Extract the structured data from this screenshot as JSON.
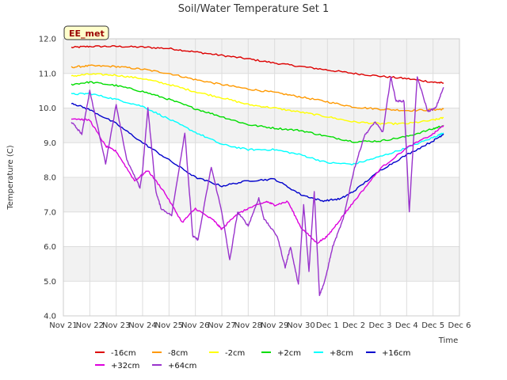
{
  "chart_data": {
    "type": "line",
    "title": "Soil/Water Temperature Set 1",
    "xlabel": "Time",
    "ylabel": "Temperature (C)",
    "station_badge": "EE_met",
    "ylim": [
      4.0,
      12.0
    ],
    "yticks": [
      "4.0",
      "5.0",
      "6.0",
      "7.0",
      "8.0",
      "9.0",
      "10.0",
      "11.0",
      "12.0"
    ],
    "xlim": [
      0,
      15
    ],
    "xticks": [
      "Nov 21",
      "Nov 22",
      "Nov 23",
      "Nov 24",
      "Nov 25",
      "Nov 26",
      "Nov 27",
      "Nov 28",
      "Nov 29",
      "Nov 30",
      "Dec 1",
      "Dec 2",
      "Dec 3",
      "Dec 4",
      "Dec 5",
      "Dec 6"
    ],
    "grid": true,
    "legend_position": "bottom",
    "series": [
      {
        "name": "-16cm",
        "color": "#dd0000",
        "x": [
          0.3,
          1,
          2,
          3,
          4,
          5,
          6,
          7,
          8,
          9,
          10,
          11,
          12,
          13,
          14,
          14.4
        ],
        "y": [
          11.75,
          11.78,
          11.78,
          11.76,
          11.72,
          11.62,
          11.52,
          11.42,
          11.3,
          11.2,
          11.1,
          11.0,
          10.92,
          10.85,
          10.75,
          10.72
        ]
      },
      {
        "name": "-8cm",
        "color": "#ff9900",
        "x": [
          0.3,
          1,
          2,
          3,
          4,
          5,
          6,
          7,
          8,
          9,
          10,
          11,
          12,
          13,
          14,
          14.4
        ],
        "y": [
          11.18,
          11.22,
          11.2,
          11.12,
          11.0,
          10.82,
          10.68,
          10.55,
          10.45,
          10.32,
          10.18,
          10.03,
          9.97,
          9.93,
          9.95,
          9.97
        ]
      },
      {
        "name": "-2cm",
        "color": "#ffff00",
        "x": [
          0.3,
          1,
          2,
          3,
          4,
          5,
          6,
          7,
          8,
          9,
          10,
          11,
          12,
          13,
          14,
          14.4
        ],
        "y": [
          10.92,
          10.98,
          10.95,
          10.85,
          10.68,
          10.47,
          10.3,
          10.1,
          10.0,
          9.88,
          9.75,
          9.6,
          9.55,
          9.55,
          9.65,
          9.72
        ]
      },
      {
        "name": "+2cm",
        "color": "#00dd00",
        "x": [
          0.3,
          1,
          2,
          3,
          4,
          5,
          6,
          7,
          8,
          9,
          10,
          11,
          12,
          13,
          14,
          14.4
        ],
        "y": [
          10.68,
          10.75,
          10.65,
          10.48,
          10.25,
          9.98,
          9.75,
          9.52,
          9.42,
          9.35,
          9.18,
          9.03,
          9.05,
          9.18,
          9.4,
          9.5
        ]
      },
      {
        "name": "+8cm",
        "color": "#00ffff",
        "x": [
          0.3,
          1,
          2,
          3,
          4,
          5,
          6,
          7,
          8,
          9,
          10,
          11,
          12,
          13,
          14,
          14.4
        ],
        "y": [
          10.4,
          10.42,
          10.25,
          10.05,
          9.68,
          9.3,
          8.95,
          8.8,
          8.8,
          8.65,
          8.42,
          8.38,
          8.6,
          8.85,
          9.15,
          9.28
        ]
      },
      {
        "name": "+16cm",
        "color": "#0000cc",
        "x": [
          0.3,
          1,
          2,
          3,
          4,
          5,
          6,
          7,
          8,
          9,
          9.8,
          10.5,
          11,
          12,
          13,
          14,
          14.4
        ],
        "y": [
          10.15,
          9.95,
          9.55,
          9.0,
          8.5,
          8.0,
          7.75,
          7.9,
          7.95,
          7.5,
          7.32,
          7.38,
          7.6,
          8.2,
          8.65,
          9.05,
          9.25
        ]
      },
      {
        "name": "+32cm",
        "color": "#dd00dd",
        "x": [
          0.3,
          1,
          1.6,
          2,
          2.7,
          3.2,
          3.8,
          4.5,
          5,
          5.7,
          6,
          6.5,
          7,
          7.7,
          8,
          8.5,
          9,
          9.6,
          10,
          10.5,
          11,
          12,
          13,
          14,
          14.4
        ],
        "y": [
          9.7,
          9.65,
          8.9,
          8.75,
          7.9,
          8.2,
          7.6,
          6.7,
          7.1,
          6.75,
          6.5,
          6.9,
          7.1,
          7.3,
          7.2,
          7.3,
          6.55,
          6.1,
          6.3,
          6.8,
          7.3,
          8.25,
          8.85,
          9.25,
          9.5
        ]
      },
      {
        "name": "+64cm",
        "color": "#9933cc",
        "x": [
          0.3,
          0.7,
          1,
          1.6,
          2,
          2.4,
          2.9,
          3,
          3.2,
          3.5,
          3.7,
          4.1,
          4.6,
          4.9,
          5.1,
          5.6,
          6,
          6.3,
          6.6,
          7,
          7.4,
          7.6,
          8.1,
          8.4,
          8.6,
          8.9,
          9.1,
          9.3,
          9.5,
          9.7,
          9.9,
          10.2,
          10.6,
          11,
          11.4,
          11.8,
          12.1,
          12.4,
          12.6,
          12.9,
          13.1,
          13.4,
          13.8,
          14.1,
          14.4
        ],
        "y": [
          9.6,
          9.25,
          10.5,
          8.4,
          10.1,
          8.5,
          7.7,
          8.2,
          10.0,
          7.6,
          7.1,
          6.9,
          9.3,
          6.3,
          6.2,
          8.3,
          7.0,
          5.6,
          7.0,
          6.6,
          7.4,
          6.8,
          6.3,
          5.4,
          6.0,
          4.9,
          7.2,
          5.3,
          7.6,
          4.6,
          5.0,
          6.0,
          6.8,
          8.2,
          9.2,
          9.6,
          9.3,
          10.9,
          10.2,
          10.2,
          7.0,
          10.9,
          9.9,
          10.0,
          10.6
        ]
      }
    ]
  }
}
